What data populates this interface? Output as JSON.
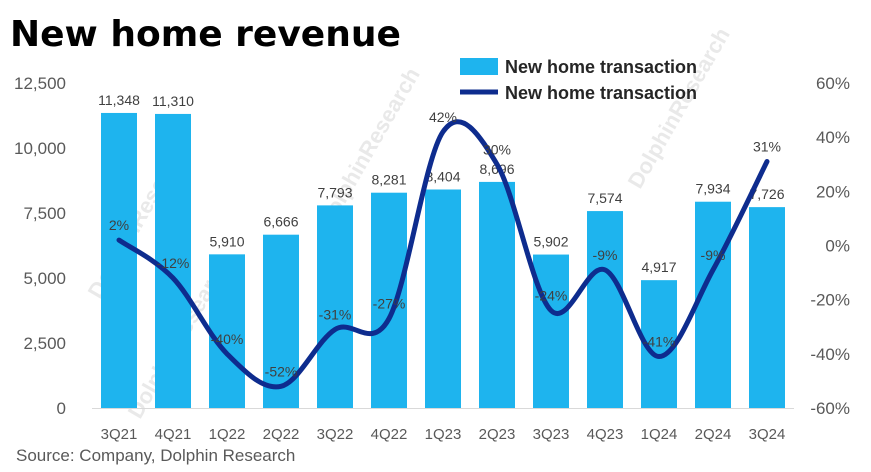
{
  "title": "New home revenue",
  "source": "Source: Company, Dolphin Research",
  "watermark": "DolphinResearch",
  "colors": {
    "bar": "#1EB4EE",
    "line": "#0E2C8E",
    "text": "#404040",
    "axis": "#d9d9d9"
  },
  "chart_data": {
    "type": "bar",
    "categories": [
      "3Q21",
      "4Q21",
      "1Q22",
      "2Q22",
      "3Q22",
      "4Q22",
      "1Q23",
      "2Q23",
      "3Q23",
      "4Q23",
      "1Q24",
      "2Q24",
      "3Q24"
    ],
    "series": [
      {
        "name": "New home transaction",
        "type": "bar",
        "axis": "left",
        "values": [
          11348,
          11310,
          5910,
          6666,
          7793,
          8281,
          8404,
          8696,
          5902,
          7574,
          4917,
          7934,
          7726
        ],
        "labels": [
          "11,348",
          "11,310",
          "5,910",
          "6,666",
          "7,793",
          "8,281",
          "8,404",
          "8,696",
          "5,902",
          "7,574",
          "4,917",
          "7,934",
          "7,726"
        ]
      },
      {
        "name": "New home transaction",
        "type": "line",
        "axis": "right",
        "values": [
          2,
          -12,
          -40,
          -52,
          -31,
          -27,
          42,
          30,
          -24,
          -9,
          -41,
          -9,
          31
        ],
        "labels": [
          "2%",
          "-12%",
          "-40%",
          "-52%",
          "-31%",
          "-27%",
          "42%",
          "30%",
          "-24%",
          "-9%",
          "-41%",
          "-9%",
          "31%"
        ]
      }
    ],
    "y_left": {
      "min": 0,
      "max": 12500,
      "ticks": [
        0,
        2500,
        5000,
        7500,
        10000,
        12500
      ],
      "tick_labels": [
        "0",
        "2,500",
        "5,000",
        "7,500",
        "10,000",
        "12,500"
      ]
    },
    "y_right": {
      "min": -60,
      "max": 60,
      "ticks": [
        -60,
        -40,
        -20,
        0,
        20,
        40,
        60
      ],
      "tick_labels": [
        "-60%",
        "-40%",
        "-20%",
        "0%",
        "20%",
        "40%",
        "60%"
      ]
    },
    "legend_position": "top-right",
    "grid": false
  }
}
